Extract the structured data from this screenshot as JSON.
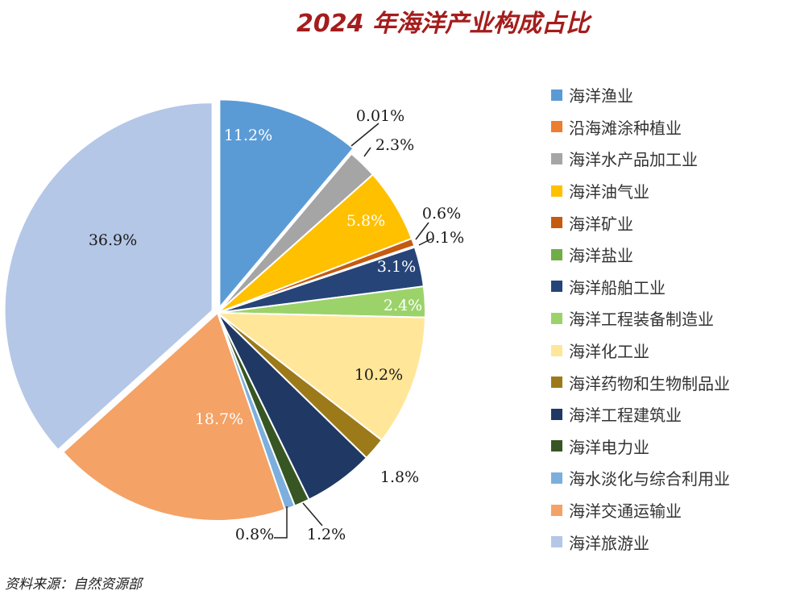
{
  "title": "2024 年海洋产业构成占比",
  "source": "资料来源：自然资源部",
  "chart_data": {
    "type": "pie",
    "title": "2024 年海洋产业构成占比",
    "legend_position": "right",
    "categories": [
      "海洋渔业",
      "沿海滩涂种植业",
      "海洋水产品加工业",
      "海洋油气业",
      "海洋矿业",
      "海洋盐业",
      "海洋船舶工业",
      "海洋工程装备制造业",
      "海洋化工业",
      "海洋药物和生物制品业",
      "海洋工程建筑业",
      "海洋电力业",
      "海水淡化与综合利用业",
      "海洋交通运输业",
      "海洋旅游业"
    ],
    "values": [
      11.2,
      0.01,
      2.3,
      5.8,
      0.6,
      0.1,
      3.1,
      2.4,
      10.2,
      1.8,
      5.5,
      1.2,
      0.8,
      18.7,
      36.9
    ],
    "labels": [
      "11.2%",
      "0.01%",
      "2.3%",
      "5.8%",
      "0.6%",
      "0.1%",
      "3.1%",
      "2.4%",
      "10.2%",
      "1.8%",
      "",
      "1.2%",
      "0.8%",
      "18.7%",
      "36.9%"
    ],
    "colors": [
      "#5b9bd5",
      "#ed7d31",
      "#a5a5a5",
      "#ffc000",
      "#c55a11",
      "#70ad47",
      "#264478",
      "#9bd36a",
      "#ffe699",
      "#9c7a1a",
      "#203864",
      "#375623",
      "#7cafdd",
      "#f4a266",
      "#b4c7e7"
    ],
    "exploded": [
      0,
      14
    ]
  }
}
